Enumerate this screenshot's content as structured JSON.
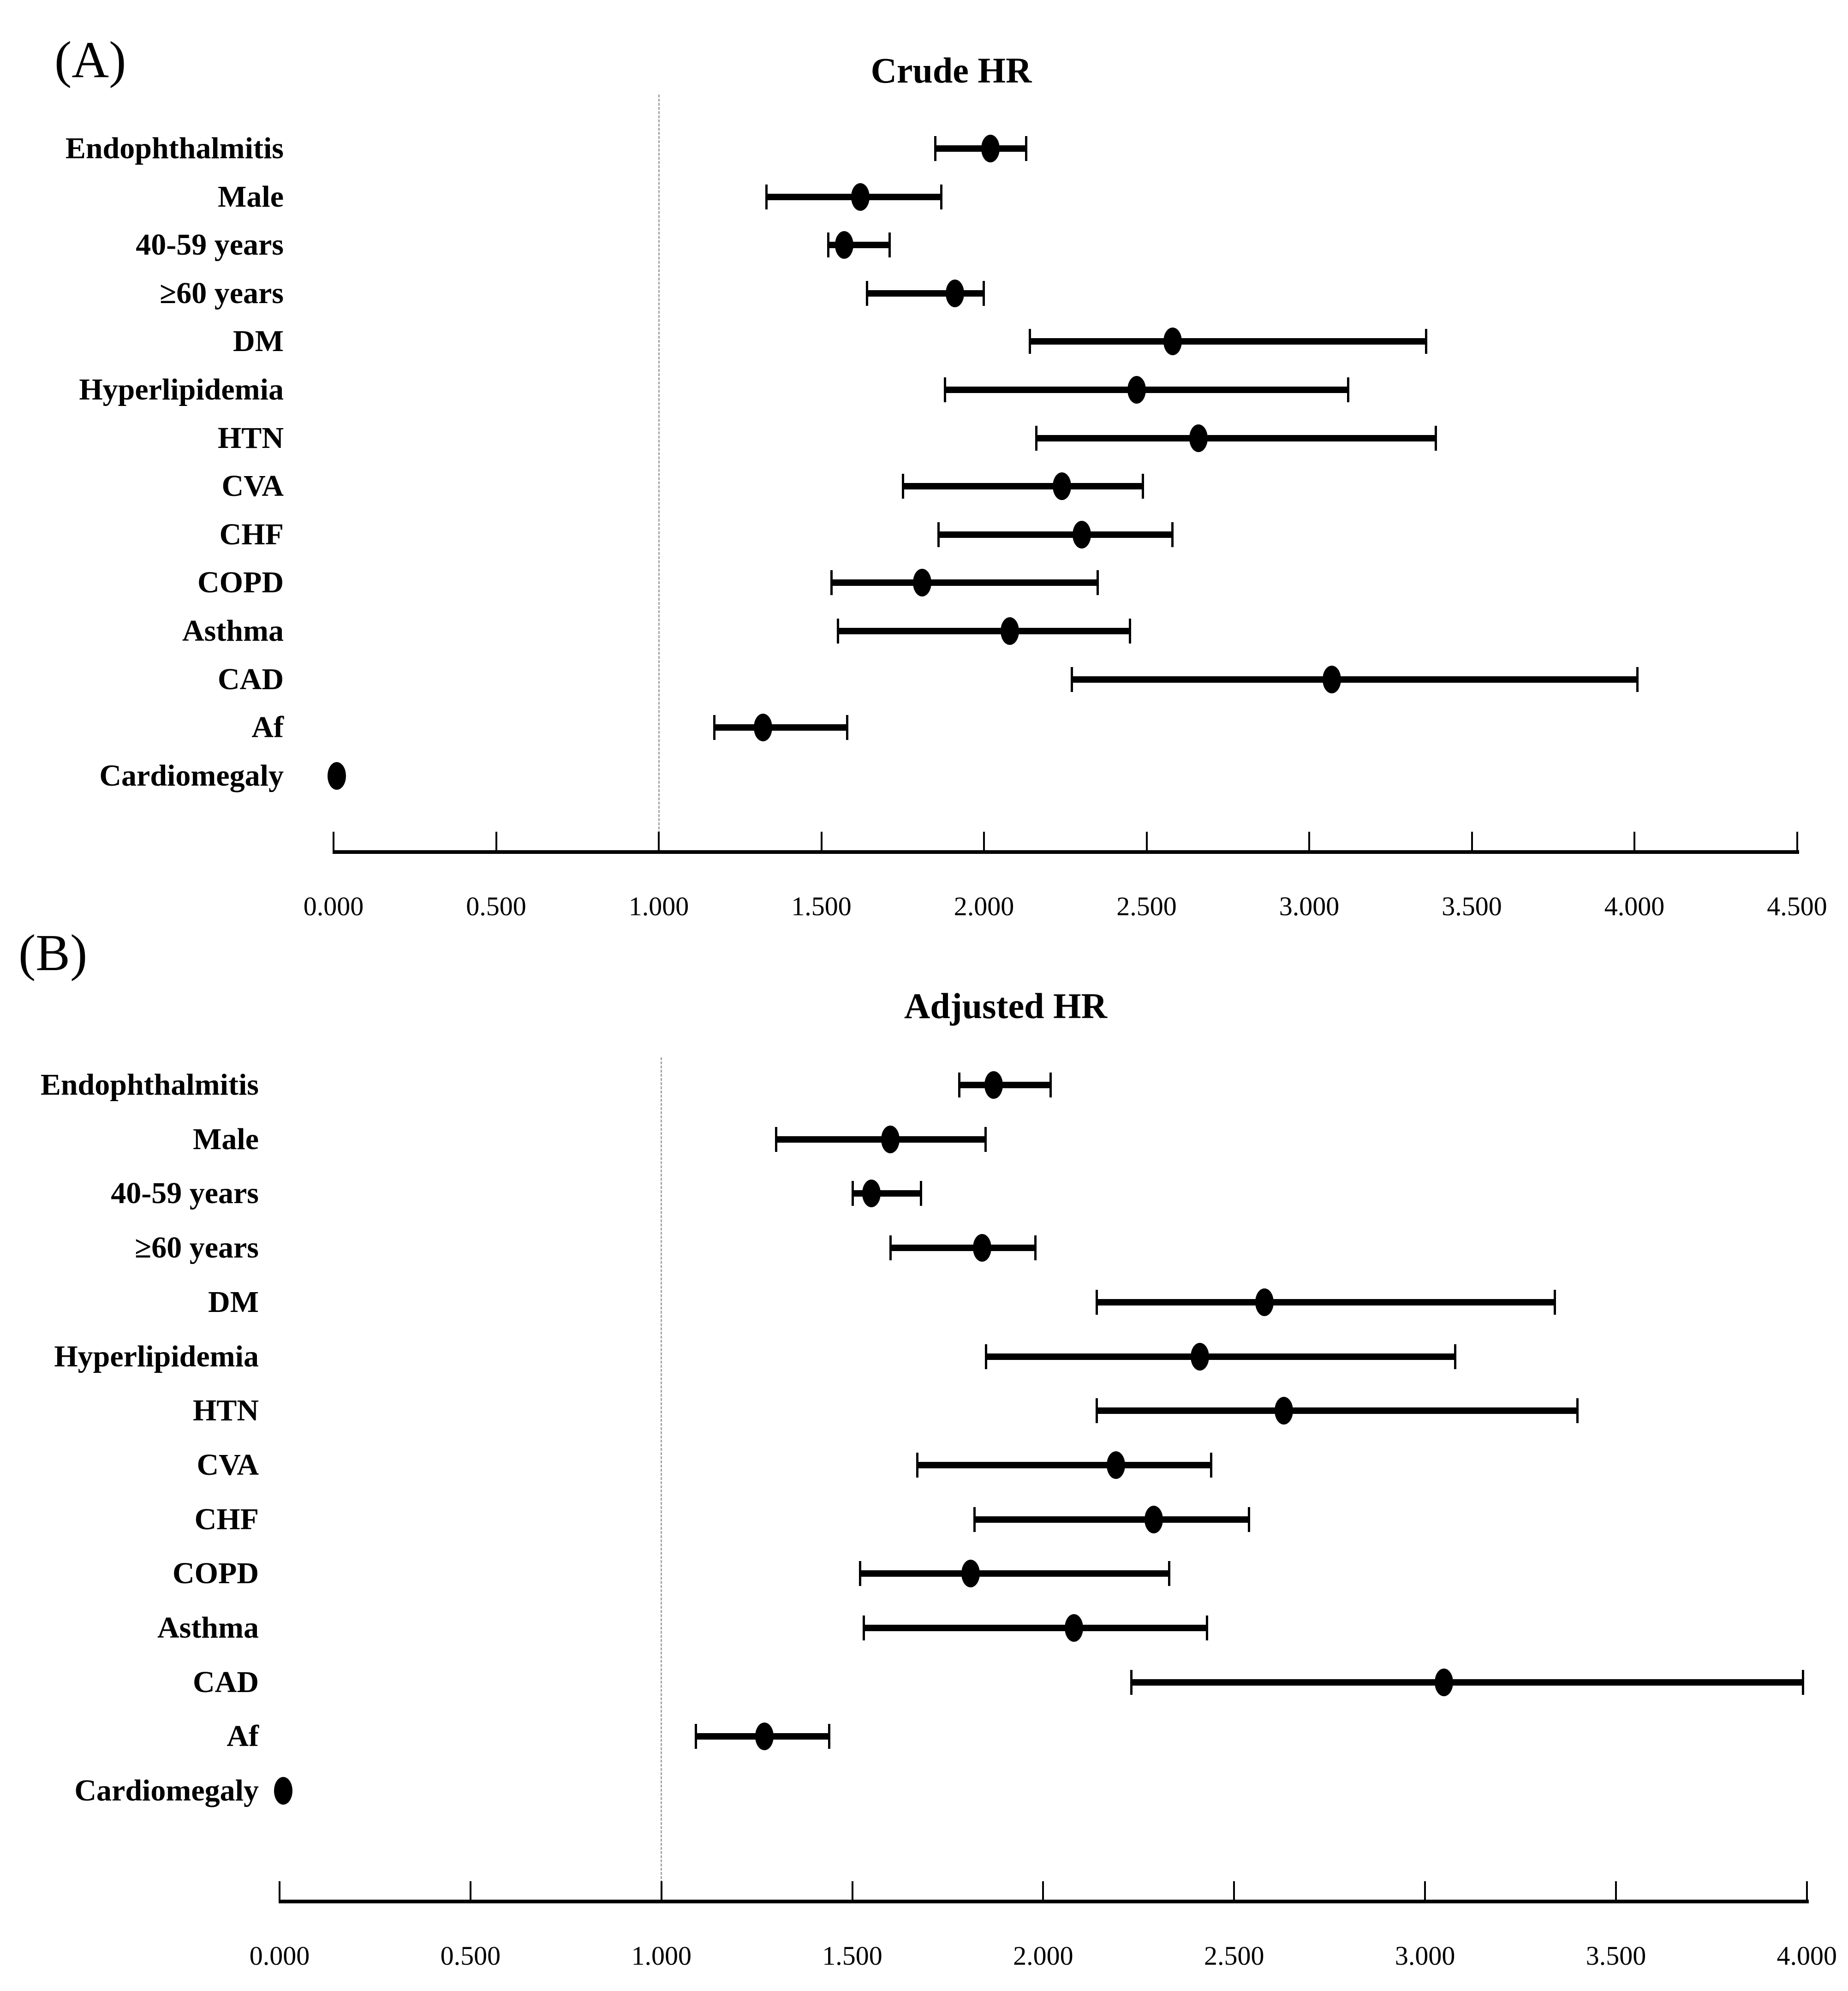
{
  "chart_data": [
    {
      "panel_label": "(A)",
      "title": "Crude HR",
      "type": "scatter",
      "variant": "forest-plot",
      "marker_color": "#000000",
      "reference_line_color": "#a3a3a3",
      "x_axis": {
        "min": 0,
        "max": 4.5,
        "tick_labels": [
          "0.000",
          "0.500",
          "1.000",
          "1.500",
          "2.000",
          "2.500",
          "3.000",
          "3.500",
          "4.000",
          "4.500"
        ],
        "reference_line": 1.0,
        "grid": false
      },
      "rows": [
        {
          "label": "Endophthalmitis",
          "hr": 2.02,
          "ci_low": 1.85,
          "ci_high": 2.13
        },
        {
          "label": "Male",
          "hr": 1.62,
          "ci_low": 1.33,
          "ci_high": 1.87
        },
        {
          "label": "40-59 years",
          "hr": 1.57,
          "ci_low": 1.52,
          "ci_high": 1.71
        },
        {
          "label": "≥60 years",
          "hr": 1.91,
          "ci_low": 1.64,
          "ci_high": 2.0
        },
        {
          "label": "DM",
          "hr": 2.58,
          "ci_low": 2.14,
          "ci_high": 3.36
        },
        {
          "label": "Hyperlipidemia",
          "hr": 2.47,
          "ci_low": 1.88,
          "ci_high": 3.12
        },
        {
          "label": "HTN",
          "hr": 2.66,
          "ci_low": 2.16,
          "ci_high": 3.39
        },
        {
          "label": "CVA",
          "hr": 2.24,
          "ci_low": 1.75,
          "ci_high": 2.49
        },
        {
          "label": "CHF",
          "hr": 2.3,
          "ci_low": 1.86,
          "ci_high": 2.58
        },
        {
          "label": "COPD",
          "hr": 1.81,
          "ci_low": 1.53,
          "ci_high": 2.35
        },
        {
          "label": "Asthma",
          "hr": 2.08,
          "ci_low": 1.55,
          "ci_high": 2.45
        },
        {
          "label": "CAD",
          "hr": 3.07,
          "ci_low": 2.27,
          "ci_high": 4.01
        },
        {
          "label": "Af",
          "hr": 1.32,
          "ci_low": 1.17,
          "ci_high": 1.58
        },
        {
          "label": "Cardiomegaly",
          "hr": 0.01,
          "ci_low": null,
          "ci_high": null
        }
      ]
    },
    {
      "panel_label": "(B)",
      "title": "Adjusted HR",
      "type": "scatter",
      "variant": "forest-plot",
      "marker_color": "#000000",
      "reference_line_color": "#a3a3a3",
      "x_axis": {
        "min": 0,
        "max": 4.0,
        "tick_labels": [
          "0.000",
          "0.500",
          "1.000",
          "1.500",
          "2.000",
          "2.500",
          "3.000",
          "3.500",
          "4.000"
        ],
        "reference_line": 1.0,
        "grid": false
      },
      "rows": [
        {
          "label": "Endophthalmitis",
          "hr": 1.87,
          "ci_low": 1.78,
          "ci_high": 2.02
        },
        {
          "label": "Male",
          "hr": 1.6,
          "ci_low": 1.3,
          "ci_high": 1.85
        },
        {
          "label": "40-59 years",
          "hr": 1.55,
          "ci_low": 1.5,
          "ci_high": 1.68
        },
        {
          "label": "≥60 years",
          "hr": 1.84,
          "ci_low": 1.6,
          "ci_high": 1.98
        },
        {
          "label": "DM",
          "hr": 2.58,
          "ci_low": 2.14,
          "ci_high": 3.34
        },
        {
          "label": "Hyperlipidemia",
          "hr": 2.41,
          "ci_low": 1.85,
          "ci_high": 3.08
        },
        {
          "label": "HTN",
          "hr": 2.63,
          "ci_low": 2.14,
          "ci_high": 3.4
        },
        {
          "label": "CVA",
          "hr": 2.19,
          "ci_low": 1.67,
          "ci_high": 2.44
        },
        {
          "label": "CHF",
          "hr": 2.29,
          "ci_low": 1.82,
          "ci_high": 2.54
        },
        {
          "label": "COPD",
          "hr": 1.81,
          "ci_low": 1.52,
          "ci_high": 2.33
        },
        {
          "label": "Asthma",
          "hr": 2.08,
          "ci_low": 1.53,
          "ci_high": 2.43
        },
        {
          "label": "CAD",
          "hr": 3.05,
          "ci_low": 2.23,
          "ci_high": 3.99
        },
        {
          "label": "Af",
          "hr": 1.27,
          "ci_low": 1.09,
          "ci_high": 1.44
        },
        {
          "label": "Cardiomegaly",
          "hr": 0.01,
          "ci_low": null,
          "ci_high": null
        }
      ]
    }
  ]
}
